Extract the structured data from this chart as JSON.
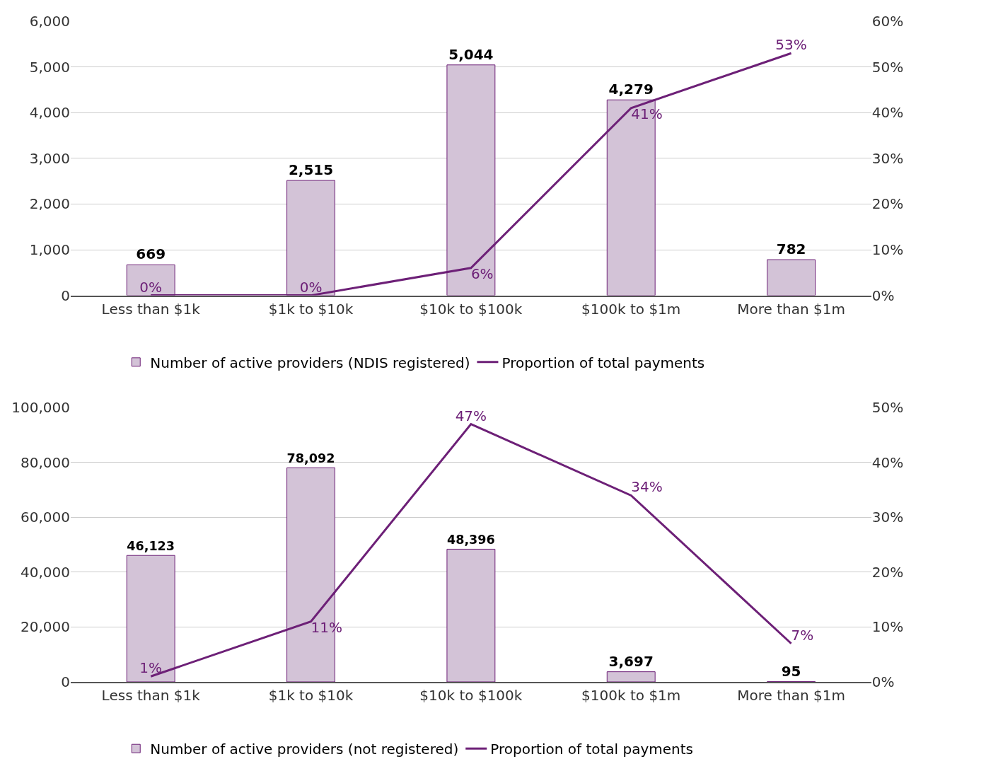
{
  "chart_data": [
    {
      "type": "bar",
      "categories": [
        "Less than $1k",
        "$1k to $10k",
        "$10k to $100k",
        "$100k to $1m",
        "More than $1m"
      ],
      "series": [
        {
          "name": "Number of active providers (NDIS registered)",
          "color": "#d3c3d7",
          "values": [
            669,
            2515,
            5044,
            4279,
            782
          ],
          "value_labels": [
            "669",
            "2,515",
            "5,044",
            "4,279",
            "782"
          ]
        },
        {
          "name": "Proportion of total payments",
          "type": "line",
          "axis": "y2",
          "color": "#6d2077",
          "values": [
            0,
            0,
            6,
            41,
            53
          ],
          "value_labels": [
            "0%",
            "0%",
            "6%",
            "41%",
            "53%"
          ]
        }
      ],
      "ylim": [
        0,
        6000
      ],
      "yticks": [
        0,
        {
          "value": 1000,
          "label": "1,000"
        },
        {
          "value": 2000,
          "label": "2,000"
        },
        {
          "value": 3000,
          "label": "3,000"
        },
        {
          "value": 4000,
          "label": "4,000"
        },
        {
          "value": 5000,
          "label": "5,000"
        },
        {
          "value": 6000,
          "label": "6,000"
        }
      ],
      "y2lim": [
        0,
        60
      ],
      "y2ticks": [
        {
          "value": 0,
          "label": "0%"
        },
        {
          "value": 10,
          "label": "10%"
        },
        {
          "value": 20,
          "label": "20%"
        },
        {
          "value": 30,
          "label": "30%"
        },
        {
          "value": 40,
          "label": "40%"
        },
        {
          "value": 50,
          "label": "50%"
        },
        {
          "value": 60,
          "label": "60%"
        }
      ],
      "grid": "y",
      "legend": "bottom",
      "marker": "none",
      "line_style": "solid"
    },
    {
      "type": "bar",
      "categories": [
        "Less than $1k",
        "$1k to $10k",
        "$10k to $100k",
        "$100k to $1m",
        "More than $1m"
      ],
      "series": [
        {
          "name": "Number of active providers (not registered)",
          "color": "#d3c3d7",
          "values": [
            46123,
            78092,
            48396,
            3697,
            95
          ],
          "value_labels": [
            "46,123",
            "78,092",
            "48,396",
            "3,697",
            "95"
          ]
        },
        {
          "name": "Proportion of total payments",
          "type": "line",
          "axis": "y2",
          "color": "#6d2077",
          "values": [
            1,
            11,
            47,
            34,
            7
          ],
          "value_labels": [
            "1%",
            "11%",
            "47%",
            "34%",
            "7%"
          ]
        }
      ],
      "ylim": [
        0,
        100000
      ],
      "yticks": [
        0,
        {
          "value": 20000,
          "label": "20,000"
        },
        {
          "value": 40000,
          "label": "40,000"
        },
        {
          "value": 60000,
          "label": "60,000"
        },
        {
          "value": 80000,
          "label": "80,000"
        },
        {
          "value": 100000,
          "label": "100,000"
        }
      ],
      "y2lim": [
        0,
        50
      ],
      "y2ticks": [
        {
          "value": 0,
          "label": "0%"
        },
        {
          "value": 10,
          "label": "10%"
        },
        {
          "value": 20,
          "label": "20%"
        },
        {
          "value": 30,
          "label": "30%"
        },
        {
          "value": 40,
          "label": "40%"
        },
        {
          "value": 50,
          "label": "50%"
        }
      ],
      "grid": "y",
      "legend": "bottom",
      "marker": "none",
      "line_style": "solid"
    }
  ]
}
